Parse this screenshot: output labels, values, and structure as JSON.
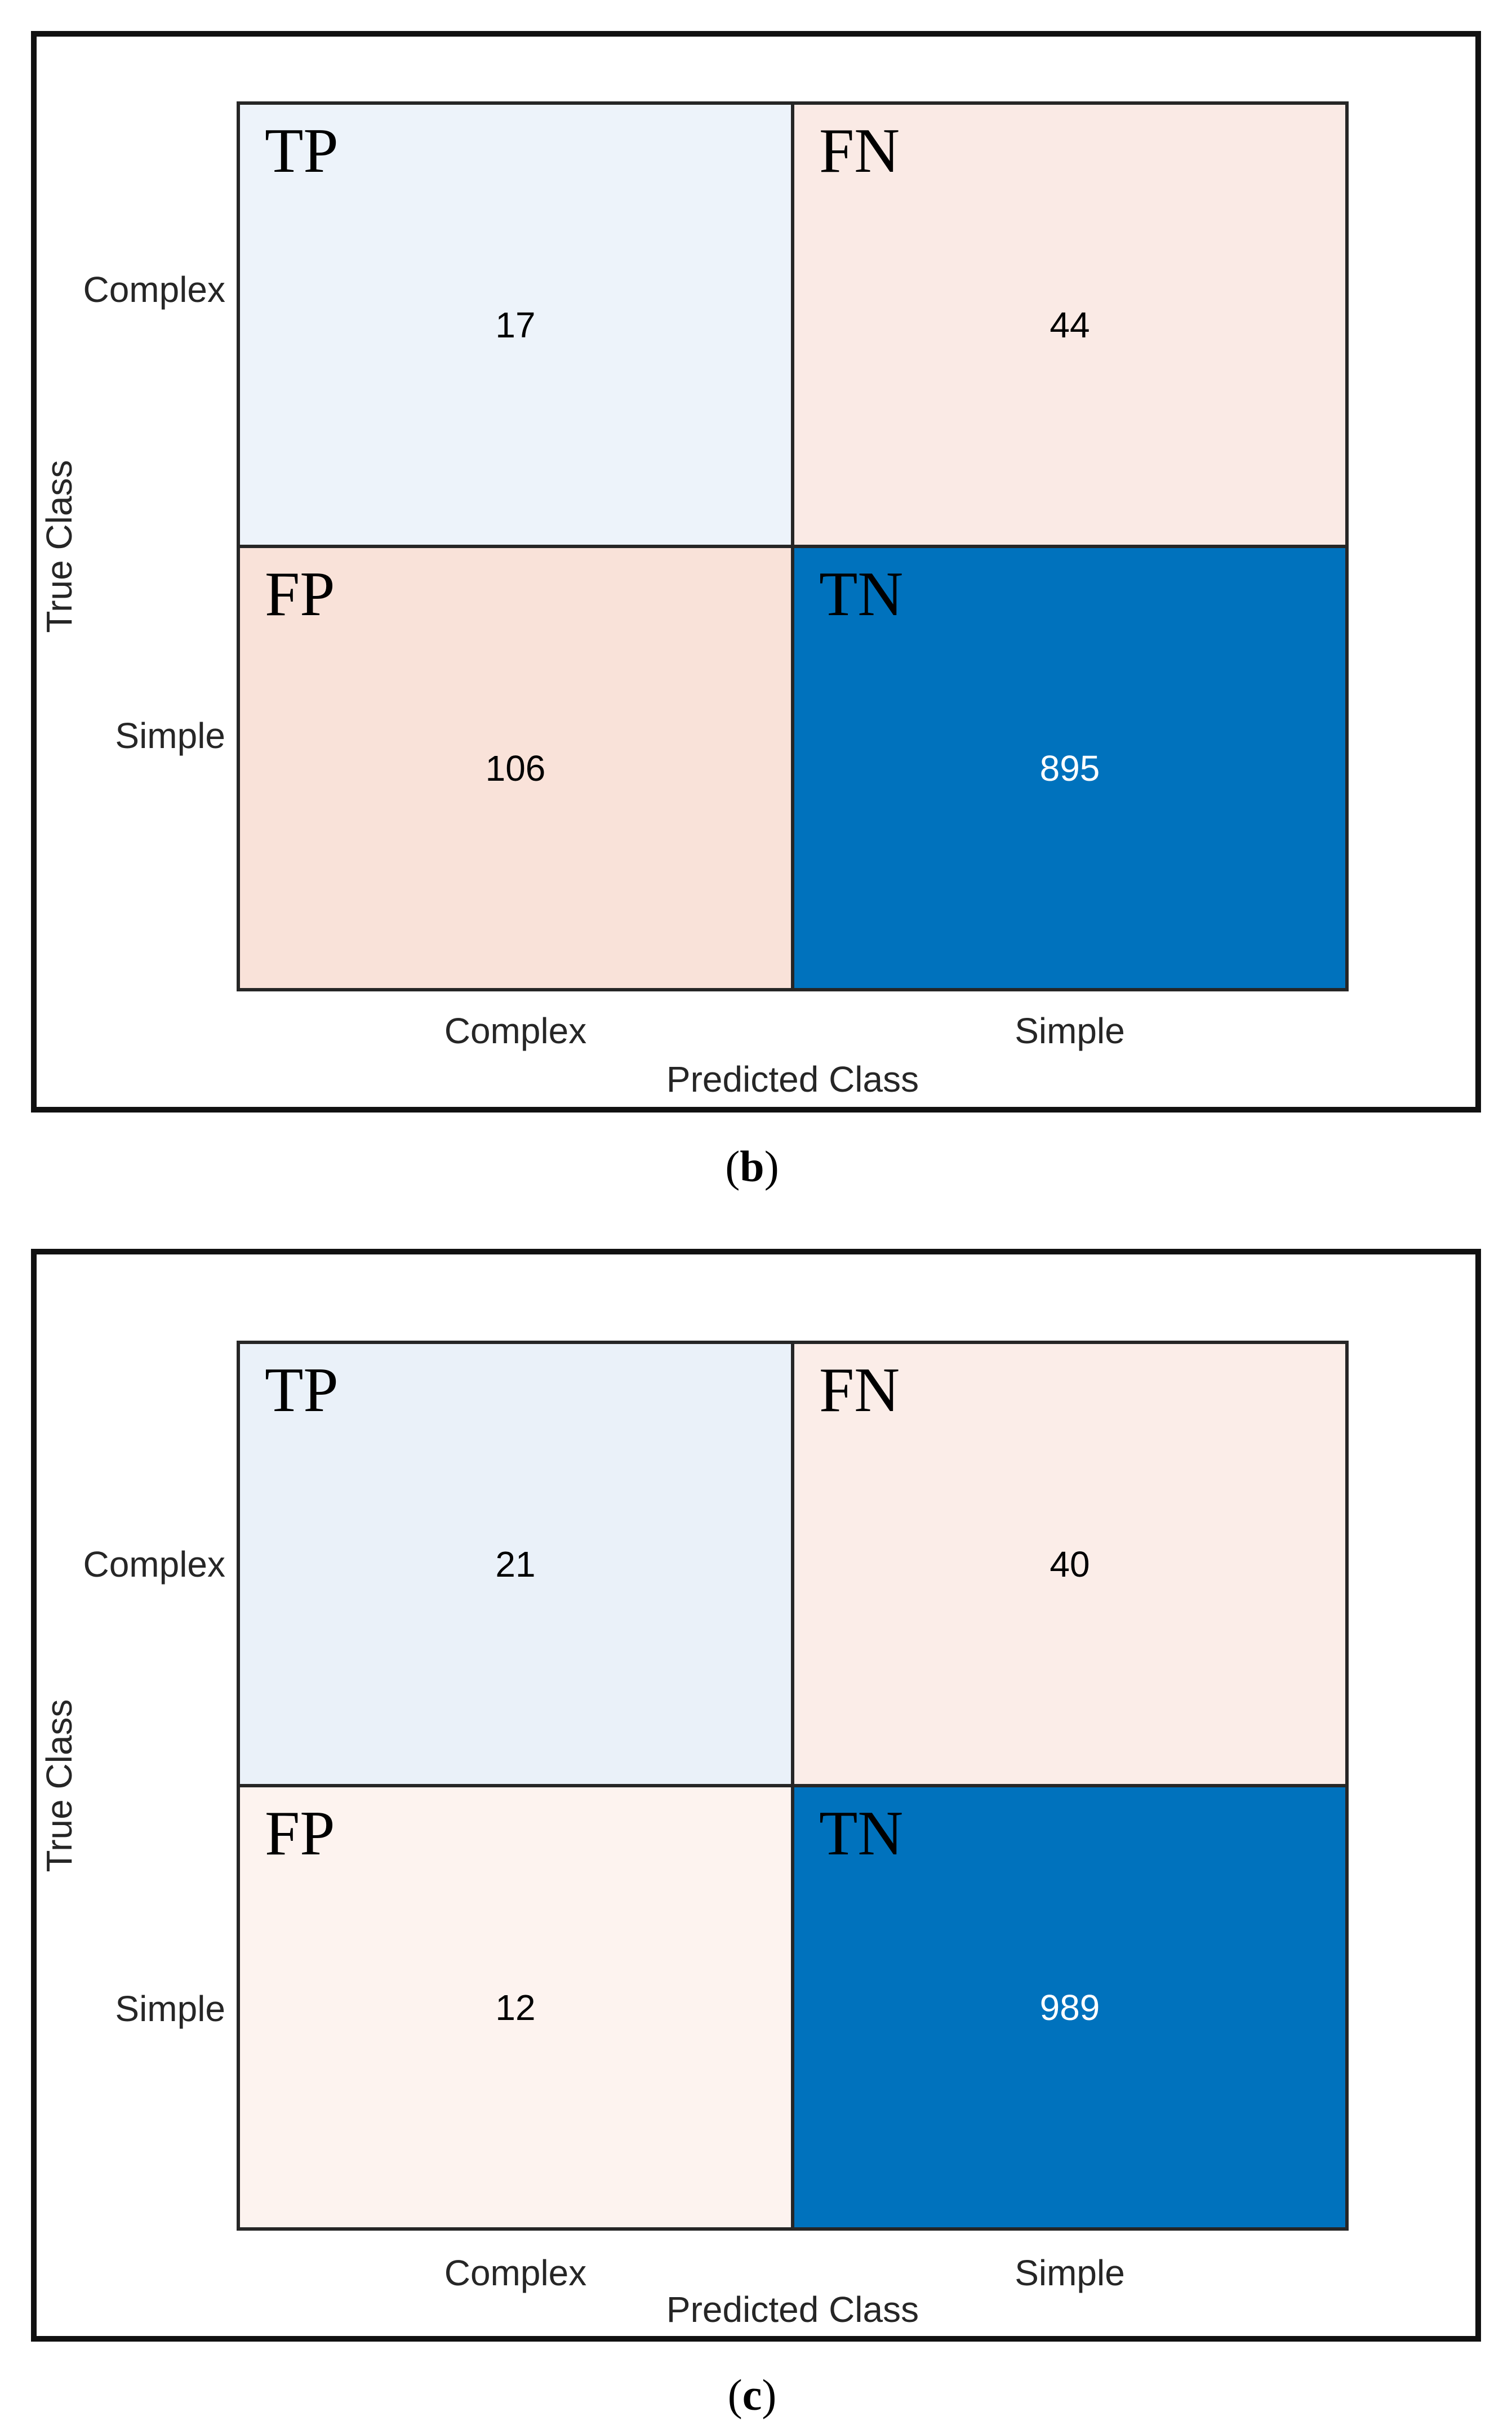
{
  "panels": {
    "b": {
      "y_axis_title": "True Class",
      "x_axis_title": "Predicted Class",
      "row_labels": [
        "Complex",
        "Simple"
      ],
      "col_labels": [
        "Complex",
        "Simple"
      ],
      "cells": {
        "tp": {
          "label": "TP",
          "value": "17",
          "bg": "#EDF3FA",
          "value_color": "#000000"
        },
        "fn": {
          "label": "FN",
          "value": "44",
          "bg": "#FAEAE5",
          "value_color": "#000000"
        },
        "fp": {
          "label": "FP",
          "value": "106",
          "bg": "#F9E2D9",
          "value_color": "#000000"
        },
        "tn": {
          "label": "TN",
          "value": "895",
          "bg": "#0072BD",
          "value_color": "#FFFFFF"
        }
      },
      "caption": {
        "open": "(",
        "letter": "b",
        "close": ")"
      }
    },
    "c": {
      "y_axis_title": "True Class",
      "x_axis_title": "Predicted Class",
      "row_labels": [
        "Complex",
        "Simple"
      ],
      "col_labels": [
        "Complex",
        "Simple"
      ],
      "cells": {
        "tp": {
          "label": "TP",
          "value": "21",
          "bg": "#EAF1F9",
          "value_color": "#000000"
        },
        "fn": {
          "label": "FN",
          "value": "40",
          "bg": "#FBEDE8",
          "value_color": "#000000"
        },
        "fp": {
          "label": "FP",
          "value": "12",
          "bg": "#FDF3EF",
          "value_color": "#000000"
        },
        "tn": {
          "label": "TN",
          "value": "989",
          "bg": "#0072BD",
          "value_color": "#FFFFFF"
        }
      },
      "caption": {
        "open": "(",
        "letter": "c",
        "close": ")"
      }
    }
  },
  "colors": {
    "accent_blue": "#0072BD",
    "grid_line": "#262626",
    "figure_border": "#111111",
    "label_text": "#262626"
  },
  "chart_data": [
    {
      "type": "heatmap",
      "title": "(b)",
      "xlabel": "Predicted Class",
      "ylabel": "True Class",
      "x_categories": [
        "Complex",
        "Simple"
      ],
      "y_categories": [
        "Complex",
        "Simple"
      ],
      "matrix": [
        [
          17,
          44
        ],
        [
          106,
          895
        ]
      ],
      "cell_roles": [
        [
          "TP",
          "FN"
        ],
        [
          "FP",
          "TN"
        ]
      ],
      "legend": "none",
      "grid": "off"
    },
    {
      "type": "heatmap",
      "title": "(c)",
      "xlabel": "Predicted Class",
      "ylabel": "True Class",
      "x_categories": [
        "Complex",
        "Simple"
      ],
      "y_categories": [
        "Complex",
        "Simple"
      ],
      "matrix": [
        [
          21,
          40
        ],
        [
          12,
          989
        ]
      ],
      "cell_roles": [
        [
          "TP",
          "FN"
        ],
        [
          "FP",
          "TN"
        ]
      ],
      "legend": "none",
      "grid": "off"
    }
  ]
}
